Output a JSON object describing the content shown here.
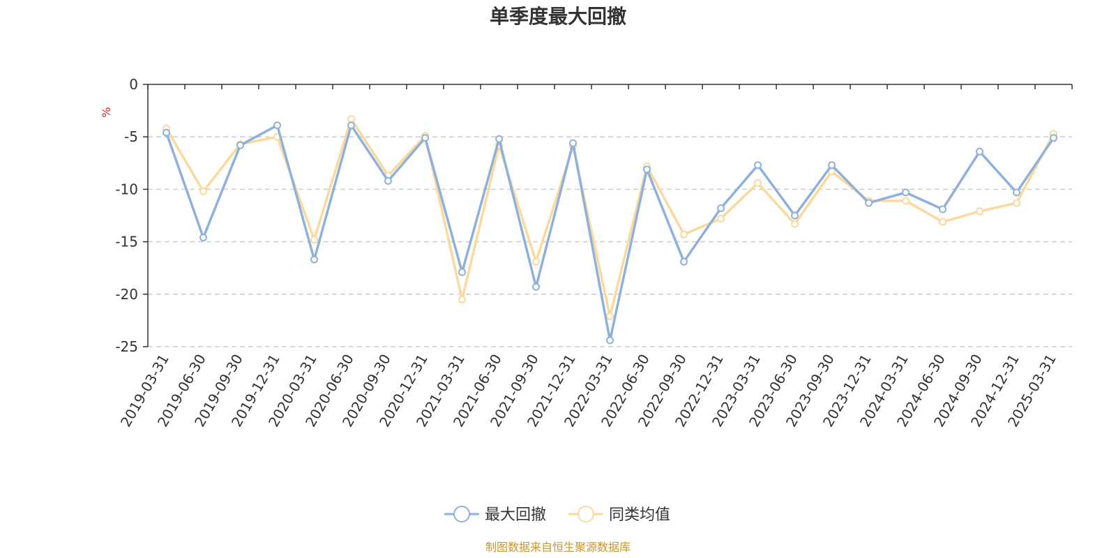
{
  "chart_data": {
    "type": "line",
    "title": "单季度最大回撤",
    "ylabel": "%",
    "ylim": [
      -25,
      0
    ],
    "yticks": [
      0,
      -5,
      -10,
      -15,
      -20,
      -25
    ],
    "grid": true,
    "legend_position": "bottom-center",
    "categories": [
      "2019-03-31",
      "2019-06-30",
      "2019-09-30",
      "2019-12-31",
      "2020-03-31",
      "2020-06-30",
      "2020-09-30",
      "2020-12-31",
      "2021-03-31",
      "2021-06-30",
      "2021-09-30",
      "2021-12-31",
      "2022-03-31",
      "2022-06-30",
      "2022-09-30",
      "2022-12-31",
      "2023-03-31",
      "2023-06-30",
      "2023-09-30",
      "2023-12-31",
      "2024-03-31",
      "2024-06-30",
      "2024-09-30",
      "2024-12-31",
      "2025-03-31"
    ],
    "series": [
      {
        "name": "最大回撤",
        "color": "#8eb0dc",
        "values": [
          -4.6,
          -14.6,
          -5.8,
          -3.9,
          -16.7,
          -3.9,
          -9.2,
          -5.1,
          -17.9,
          -5.2,
          -19.3,
          -5.6,
          -24.4,
          -8.1,
          -16.9,
          -11.8,
          -7.7,
          -12.5,
          -7.7,
          -11.3,
          -10.3,
          -11.9,
          -6.4,
          -10.3,
          -5.1
        ]
      },
      {
        "name": "同类均值",
        "color": "#fbd89b",
        "values": [
          -4.2,
          -10.2,
          -5.7,
          -5.0,
          -14.8,
          -3.3,
          -8.7,
          -4.9,
          -20.5,
          -5.8,
          -16.9,
          -5.9,
          -22.1,
          -7.8,
          -14.3,
          -12.8,
          -9.4,
          -13.3,
          -8.3,
          -11.1,
          -11.1,
          -13.1,
          -12.1,
          -11.3,
          -4.7
        ]
      }
    ]
  },
  "footer": {
    "source_text": "制图数据来自恒生聚源数据库",
    "source_color": "#c8962e"
  },
  "unit_color": "#e02020"
}
